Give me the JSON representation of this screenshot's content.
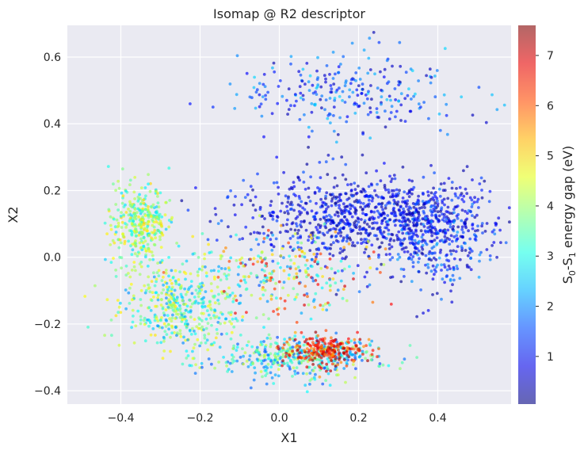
{
  "chart_data": {
    "type": "scatter",
    "title": "Isomap @ R2 descriptor",
    "xlabel": "X1",
    "ylabel": "X2",
    "xlim": [
      -0.535,
      0.585
    ],
    "ylim": [
      -0.44,
      0.695
    ],
    "xticks": [
      -0.4,
      -0.2,
      0.0,
      0.2,
      0.4
    ],
    "xtick_labels": [
      "−0.4",
      "−0.2",
      "0.0",
      "0.2",
      "0.4"
    ],
    "yticks": [
      -0.4,
      -0.2,
      0.0,
      0.2,
      0.4,
      0.6
    ],
    "ytick_labels": [
      "−0.4",
      "−0.2",
      "0.0",
      "0.2",
      "0.4",
      "0.6"
    ],
    "grid": true,
    "background": "#eaeaf2",
    "colormap": "jet",
    "point_alpha": 0.65,
    "colorbar": {
      "label": "S0-S1 energy gap (eV)",
      "label_parts": [
        "S",
        "0",
        "-S",
        "1",
        " energy gap (eV)"
      ],
      "range": [
        0.05,
        7.6
      ],
      "ticks": [
        1,
        2,
        3,
        4,
        5,
        6,
        7
      ],
      "tick_labels": [
        "1",
        "2",
        "3",
        "4",
        "5",
        "6",
        "7"
      ]
    },
    "regions": [
      {
        "description": "upper arcs",
        "center": [
          0.18,
          0.5
        ],
        "spread": [
          0.28,
          0.12
        ],
        "value_range": [
          0.3,
          2.6
        ],
        "count": 260
      },
      {
        "description": "central dense band",
        "center": [
          0.22,
          0.12
        ],
        "spread": [
          0.3,
          0.12
        ],
        "value_range": [
          0.1,
          1.6
        ],
        "count": 900
      },
      {
        "description": "right cluster",
        "center": [
          0.4,
          0.05
        ],
        "spread": [
          0.12,
          0.15
        ],
        "value_range": [
          0.3,
          2.2
        ],
        "count": 300
      },
      {
        "description": "left cluster",
        "center": [
          -0.35,
          0.1
        ],
        "spread": [
          0.08,
          0.12
        ],
        "value_range": [
          2.5,
          5.2
        ],
        "count": 350
      },
      {
        "description": "lower-left arc",
        "center": [
          -0.25,
          -0.15
        ],
        "spread": [
          0.15,
          0.14
        ],
        "value_range": [
          2.0,
          5.0
        ],
        "count": 450
      },
      {
        "description": "bottom arc",
        "center": [
          0.05,
          -0.3
        ],
        "spread": [
          0.2,
          0.06
        ],
        "value_range": [
          1.5,
          4.5
        ],
        "count": 400
      },
      {
        "description": "bottom hot spot",
        "center": [
          0.12,
          -0.28
        ],
        "spread": [
          0.1,
          0.05
        ],
        "value_range": [
          5.5,
          7.5
        ],
        "count": 220
      },
      {
        "description": "inner mixed",
        "center": [
          0.02,
          -0.05
        ],
        "spread": [
          0.2,
          0.12
        ],
        "value_range": [
          1.5,
          7.0
        ],
        "count": 250
      }
    ]
  }
}
